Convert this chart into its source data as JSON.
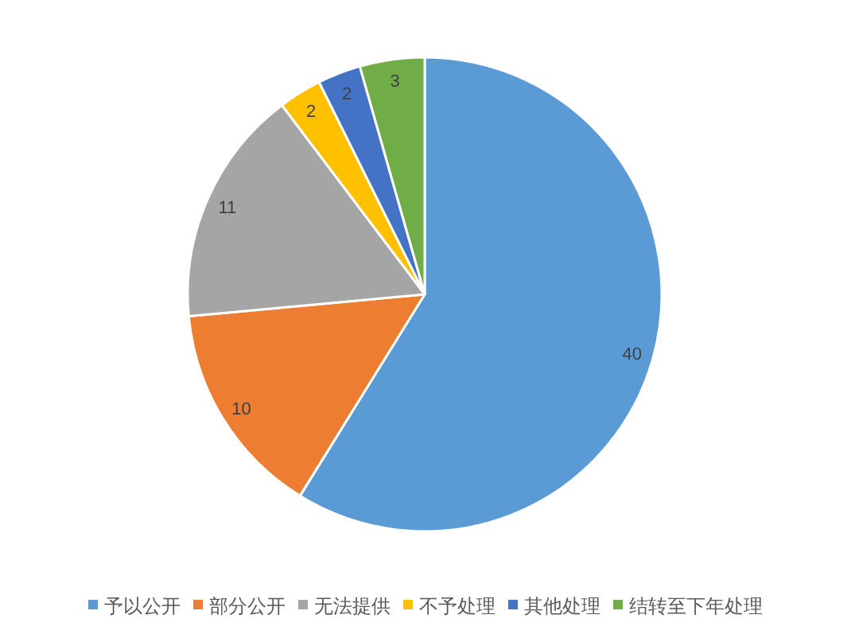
{
  "chart_data": {
    "type": "pie",
    "categories": [
      "予以公开",
      "部分公开",
      "无法提供",
      "不予处理",
      "其他处理",
      "结转至下年处理"
    ],
    "values": [
      40,
      10,
      11,
      2,
      2,
      3
    ],
    "colors": [
      "#5b9bd5",
      "#ed7d31",
      "#a5a5a5",
      "#ffc000",
      "#4472c4",
      "#70ad47"
    ],
    "data_labels": true,
    "legend": "bottom"
  }
}
